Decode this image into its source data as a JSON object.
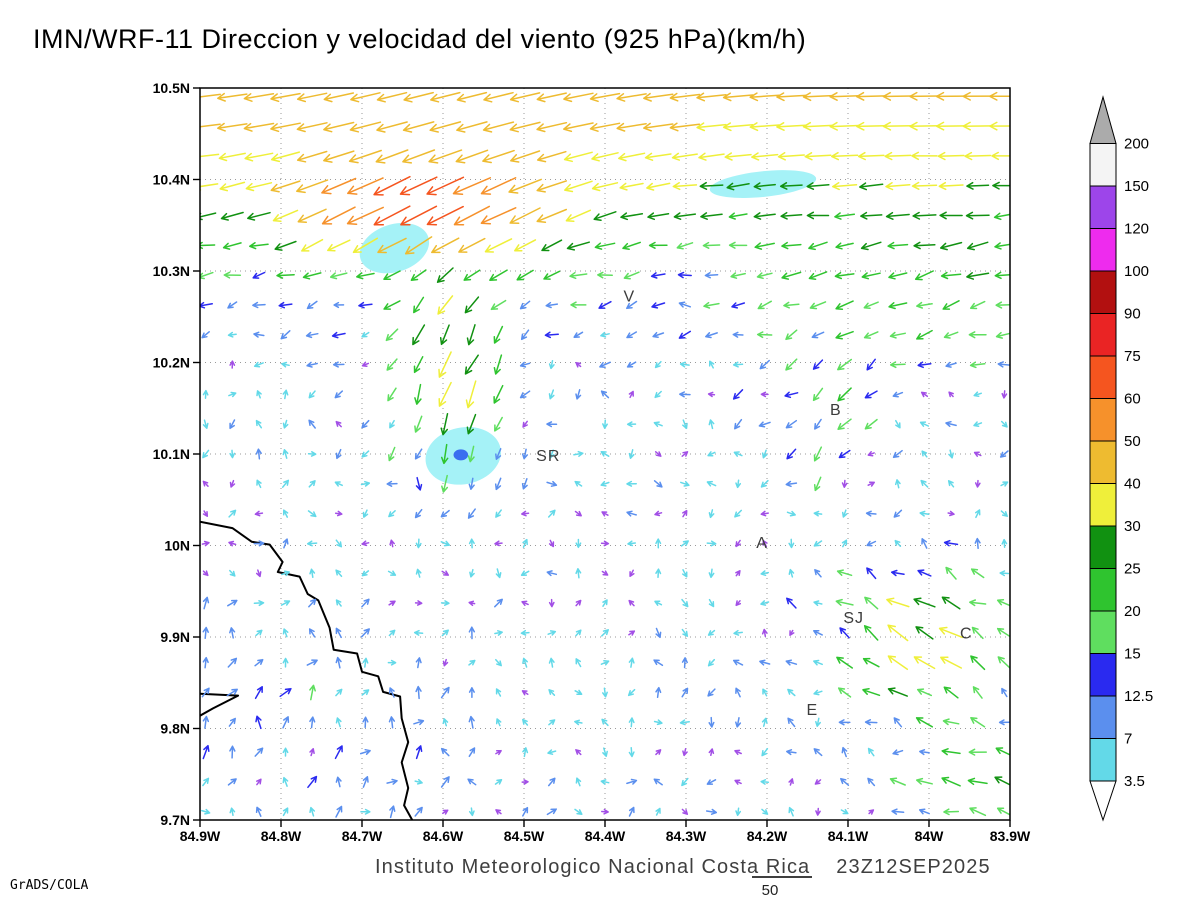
{
  "title": "IMN/WRF-11 Direccion y velocidad del viento (925 hPa)(km/h)",
  "footer": {
    "credit": "GrADS/COLA",
    "caption_left": "Instituto Meteorologico Nacional Costa Rica",
    "timestamp": "23Z12SEP2025",
    "vector_scale_label": "50"
  },
  "chart_data": {
    "type": "scatter",
    "subtype": "wind_vector_field",
    "title": "IMN/WRF-11 Direccion y velocidad del viento (925 hPa)(km/h)",
    "xlabel": "",
    "ylabel": "",
    "grid_on": true,
    "lon_range_w": [
      84.9,
      83.9
    ],
    "lat_range": [
      9.7,
      10.5
    ],
    "x_tick_labels": [
      "84.9W",
      "84.8W",
      "84.7W",
      "84.6W",
      "84.5W",
      "84.4W",
      "84.3W",
      "84.2W",
      "84.1W",
      "84W",
      "83.9W"
    ],
    "y_tick_labels": [
      "10.5N",
      "10.4N",
      "10.3N",
      "10.2N",
      "10.1N",
      "10N",
      "9.9N",
      "9.8N",
      "9.7N"
    ],
    "speed_levels": [
      3.5,
      7,
      12.5,
      15,
      20,
      25,
      30,
      40,
      50,
      60,
      75,
      90,
      100,
      120,
      150,
      200
    ],
    "band_colors": [
      "#63d9e8",
      "#5b8fee",
      "#2a2af0",
      "#5fde5f",
      "#2fc42f",
      "#119111",
      "#efef3a",
      "#eebb30",
      "#f6912b",
      "#f5551f",
      "#ea2424",
      "#b21010",
      "#ee2bee",
      "#9d45ea",
      "#f4f4f4",
      "#ababab"
    ],
    "under_color": "#ffffff",
    "calm_color": "#a24fe6",
    "colorbar_labels_top_to_bottom": [
      "200",
      "150",
      "120",
      "100",
      "90",
      "75",
      "60",
      "50",
      "40",
      "30",
      "25",
      "20",
      "15",
      "12.5",
      "7",
      "3.5"
    ],
    "city_labels": [
      {
        "text": "V",
        "lon": 84.37,
        "lat": 10.272
      },
      {
        "text": "B",
        "lon": 84.115,
        "lat": 10.148
      },
      {
        "text": "SR",
        "lon": 84.47,
        "lat": 10.098
      },
      {
        "text": "A",
        "lon": 84.206,
        "lat": 10.003
      },
      {
        "text": "SJ",
        "lon": 84.093,
        "lat": 9.921
      },
      {
        "text": "C",
        "lon": 83.954,
        "lat": 9.904
      },
      {
        "text": "E",
        "lon": 84.144,
        "lat": 9.82
      }
    ],
    "calm_regions": [
      {
        "lon": 84.66,
        "lat": 10.325,
        "rx": 0.044,
        "ry": 0.026,
        "rot": -18,
        "color": "#a5f2f7"
      },
      {
        "lon": 84.575,
        "lat": 10.098,
        "rx": 0.047,
        "ry": 0.031,
        "rot": -12,
        "color": "#a5f2f7"
      },
      {
        "lon": 84.205,
        "lat": 10.395,
        "rx": 0.066,
        "ry": 0.014,
        "rot": -6,
        "color": "#a5f2f7"
      }
    ],
    "calm_core": {
      "lon": 84.578,
      "lat": 10.099,
      "rx": 0.009,
      "ry": 0.006,
      "color": "#3b6ef0"
    },
    "coastline_main": [
      [
        84.9,
        10.026
      ],
      [
        84.86,
        10.019
      ],
      [
        84.836,
        10.004
      ],
      [
        84.814,
        10.001
      ],
      [
        84.798,
        9.982
      ],
      [
        84.804,
        9.971
      ],
      [
        84.777,
        9.966
      ],
      [
        84.767,
        9.947
      ],
      [
        84.754,
        9.94
      ],
      [
        84.74,
        9.91
      ],
      [
        84.735,
        9.886
      ],
      [
        84.706,
        9.882
      ],
      [
        84.7,
        9.862
      ],
      [
        84.68,
        9.857
      ],
      [
        84.674,
        9.84
      ],
      [
        84.653,
        9.835
      ],
      [
        84.651,
        9.811
      ],
      [
        84.643,
        9.785
      ],
      [
        84.651,
        9.763
      ],
      [
        84.643,
        9.735
      ],
      [
        84.648,
        9.716
      ],
      [
        84.638,
        9.7
      ]
    ],
    "coastline_spit": [
      [
        84.9,
        9.838
      ],
      [
        84.853,
        9.836
      ],
      [
        84.884,
        9.822
      ],
      [
        84.9,
        9.814
      ]
    ],
    "vector_grid": {
      "cols": 31,
      "rows": 25,
      "lon_inset": 0.007,
      "lat_inset": 0.009
    },
    "vector_scale_kmh": 50,
    "flow_features": {
      "north_easterly": {
        "lat_start": 10.05,
        "lat_full": 10.46,
        "max_speed": 40,
        "tilt_v": -0.25,
        "tilt_lon_center": 84.6,
        "tilt_lon_sd": 0.35
      },
      "jets": [
        {
          "name": "nw_jet",
          "lon": 84.62,
          "lat": 10.37,
          "lon_sd": 0.17,
          "lat_sd": 0.055,
          "speed": 42,
          "dir_deg": 235
        },
        {
          "name": "south_branch",
          "lon": 84.59,
          "lat": 10.17,
          "lon_sd": 0.075,
          "lat_sd": 0.11,
          "speed": 34,
          "dir_deg": 195
        },
        {
          "name": "east_mid",
          "lon": 84.0,
          "lat": 10.27,
          "lon_sd": 0.2,
          "lat_sd": 0.09,
          "speed": 12,
          "dir_deg": 240
        },
        {
          "name": "b_swirl",
          "lon": 84.13,
          "lat": 10.13,
          "lon_sd": 0.09,
          "lat_sd": 0.09,
          "speed": 13,
          "dir_deg": 210
        },
        {
          "name": "right_jet",
          "lon": 84.02,
          "lat": 9.9,
          "lon_sd": 0.13,
          "lat_sd": 0.09,
          "speed": 30,
          "dir_deg": 300
        },
        {
          "name": "corner_jet",
          "lon": 83.93,
          "lat": 9.74,
          "lon_sd": 0.11,
          "lat_sd": 0.06,
          "speed": 24,
          "dir_deg": 285
        },
        {
          "name": "onshore",
          "lon": 84.78,
          "lat": 9.8,
          "lon_sd": 0.26,
          "lat_sd": 0.17,
          "speed": 10,
          "dir_deg": 20
        }
      ],
      "ambient_south": {
        "speed_min": 2,
        "speed_max": 8
      }
    }
  }
}
